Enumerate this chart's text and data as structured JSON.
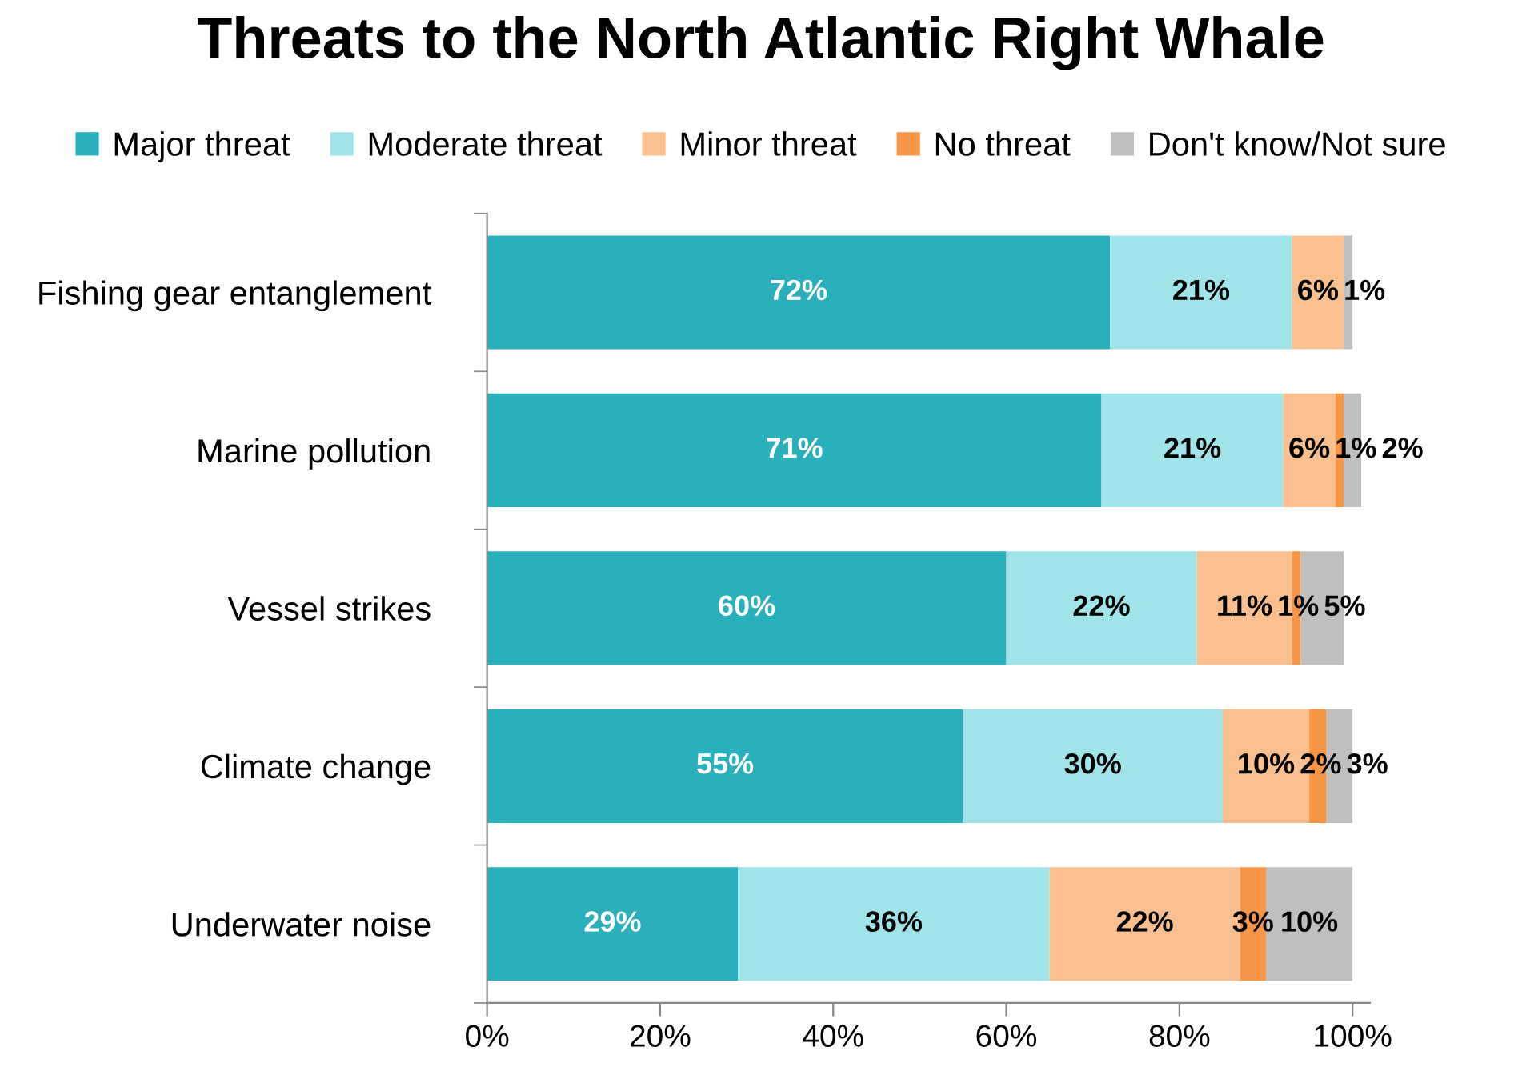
{
  "chart_data": {
    "type": "bar",
    "orientation": "horizontal",
    "stacked": true,
    "title": "Threats to the North Atlantic Right Whale",
    "categories": [
      "Fishing gear entanglement",
      "Marine pollution",
      "Vessel strikes",
      "Climate change",
      "Underwater noise"
    ],
    "series": [
      {
        "name": "Major threat",
        "color": "#2ab0ba",
        "values": [
          72,
          71,
          60,
          55,
          29
        ],
        "value_labels": [
          "72%",
          "71%",
          "60%",
          "55%",
          "29%"
        ]
      },
      {
        "name": "Moderate threat",
        "color": "#a0e4ea",
        "values": [
          21,
          21,
          22,
          30,
          36
        ],
        "value_labels": [
          "21%",
          "21%",
          "22%",
          "30%",
          "36%"
        ]
      },
      {
        "name": "Minor threat",
        "color": "#f9bf8f",
        "values": [
          6,
          6,
          11,
          10,
          22
        ],
        "value_labels": [
          "6%",
          "6%",
          "11%",
          "10%",
          "22%"
        ]
      },
      {
        "name": "No threat",
        "color": "#f79646",
        "values": [
          null,
          1,
          1,
          2,
          3
        ],
        "value_labels": [
          null,
          "1%",
          "1%",
          "2%",
          "3%"
        ]
      },
      {
        "name": "Don't know/Not sure",
        "color": "#bfbfbf",
        "values": [
          1,
          2,
          5,
          3,
          10
        ],
        "value_labels": [
          "1%",
          "2%",
          "5%",
          "3%",
          "10%"
        ]
      }
    ],
    "xlim": [
      0,
      102
    ],
    "xticks": [
      {
        "value": 0,
        "label": "0%"
      },
      {
        "value": 20,
        "label": "20%"
      },
      {
        "value": 40,
        "label": "40%"
      },
      {
        "value": 60,
        "label": "60%"
      },
      {
        "value": 80,
        "label": "80%"
      },
      {
        "value": 100,
        "label": "100%"
      }
    ],
    "grid": false,
    "legend": "top"
  }
}
